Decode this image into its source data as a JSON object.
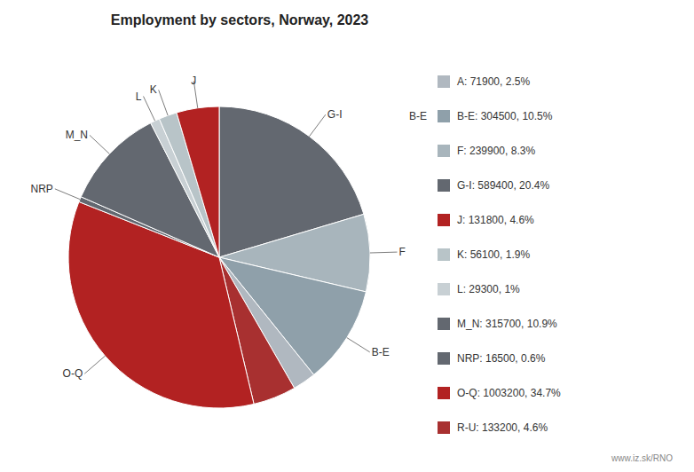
{
  "chart_data": {
    "type": "pie",
    "title": "Employment by sectors, Norway, 2023",
    "categories": [
      "G-I",
      "F",
      "B-E",
      null,
      null,
      "O-Q",
      "NRP",
      "M_N",
      "L",
      "K",
      "J"
    ],
    "values": [
      589400,
      239900,
      304500,
      71900,
      133200,
      1003200,
      16500,
      315700,
      29300,
      56100,
      131800
    ],
    "colors": [
      "#636870",
      "#a8b5bc",
      "#8fa0aa",
      "#b0b8c0",
      "#a83030",
      "#b22222",
      "#636870",
      "#636870",
      "#c8d0d4",
      "#b8c4c8",
      "#b22222"
    ],
    "legend": "right",
    "legend_entries": [
      {
        "label": "A: 71900, 2.5%",
        "color": "#b0b8c0"
      },
      {
        "label": "B-E: 304500, 10.5%",
        "color": "#8fa0aa"
      },
      {
        "label": "F: 239900, 8.3%",
        "color": "#a8b5bc"
      },
      {
        "label": "G-I: 589400, 20.4%",
        "color": "#636870"
      },
      {
        "label": "J: 131800, 4.6%",
        "color": "#b22222"
      },
      {
        "label": "K: 56100, 1.9%",
        "color": "#b8c4c8"
      },
      {
        "label": "L: 29300, 1%",
        "color": "#c8d0d4"
      },
      {
        "label": "M_N: 315700, 10.9%",
        "color": "#636870"
      },
      {
        "label": "NRP: 16500, 0.6%",
        "color": "#636870"
      },
      {
        "label": "O-Q: 1003200, 34.7%",
        "color": "#b22222"
      },
      {
        "label": "R-U: 133200, 4.6%",
        "color": "#a83030"
      }
    ],
    "annotations": [
      "B-E"
    ],
    "watermark": "www.iz.sk/RNO"
  }
}
